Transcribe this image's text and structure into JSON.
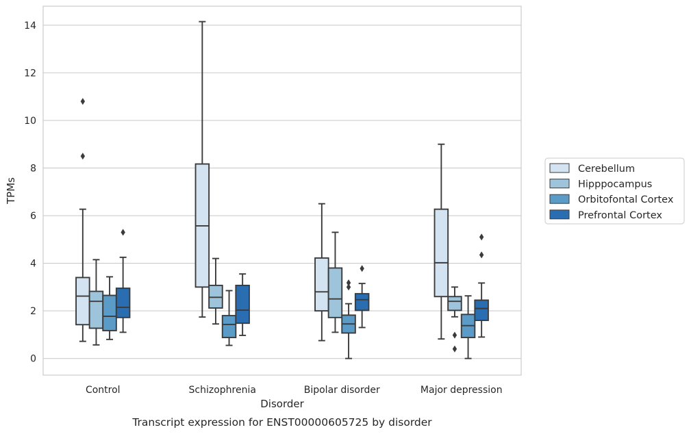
{
  "chart_data": {
    "type": "box",
    "title": "",
    "caption": "Transcript expression for ENST00000605725 by disorder",
    "xlabel": "Disorder",
    "ylabel": "TPMs",
    "ylim": [
      -0.7,
      14.8
    ],
    "yticks": [
      0,
      2,
      4,
      6,
      8,
      10,
      12,
      14
    ],
    "grid": "horizontal",
    "legend_position": "right",
    "categories": [
      "Control",
      "Schizophrenia",
      "Bipolar disorder",
      "Major depression"
    ],
    "series": [
      {
        "name": "Cerebellum",
        "color": "#d4e3f2",
        "boxes": [
          {
            "whisker_low": 0.72,
            "q1": 1.42,
            "median": 2.62,
            "q3": 3.4,
            "whisker_high": 6.27,
            "outliers": [
              8.5,
              10.8
            ]
          },
          {
            "whisker_low": 1.74,
            "q1": 3.0,
            "median": 5.57,
            "q3": 8.17,
            "whisker_high": 14.15,
            "outliers": []
          },
          {
            "whisker_low": 0.75,
            "q1": 2.0,
            "median": 2.8,
            "q3": 4.22,
            "whisker_high": 6.5,
            "outliers": []
          },
          {
            "whisker_low": 0.82,
            "q1": 2.6,
            "median": 4.02,
            "q3": 6.27,
            "whisker_high": 9.0,
            "outliers": []
          }
        ]
      },
      {
        "name": "Hipppocampus",
        "color": "#9ec4dc",
        "boxes": [
          {
            "whisker_low": 0.57,
            "q1": 1.27,
            "median": 2.4,
            "q3": 2.82,
            "whisker_high": 4.15,
            "outliers": []
          },
          {
            "whisker_low": 1.45,
            "q1": 2.12,
            "median": 2.57,
            "q3": 3.07,
            "whisker_high": 4.2,
            "outliers": []
          },
          {
            "whisker_low": 1.1,
            "q1": 1.72,
            "median": 2.5,
            "q3": 3.8,
            "whisker_high": 5.3,
            "outliers": []
          },
          {
            "whisker_low": 1.75,
            "q1": 2.02,
            "median": 2.4,
            "q3": 2.6,
            "whisker_high": 3.0,
            "outliers": [
              0.4,
              0.98
            ]
          }
        ]
      },
      {
        "name": "Orbitofontal Cortex",
        "color": "#5a9bc8",
        "boxes": [
          {
            "whisker_low": 0.8,
            "q1": 1.17,
            "median": 1.77,
            "q3": 2.65,
            "whisker_high": 3.43,
            "outliers": []
          },
          {
            "whisker_low": 0.55,
            "q1": 0.88,
            "median": 1.43,
            "q3": 1.8,
            "whisker_high": 2.85,
            "outliers": []
          },
          {
            "whisker_low": 0.0,
            "q1": 1.07,
            "median": 1.45,
            "q3": 1.82,
            "whisker_high": 2.3,
            "outliers": [
              3.0,
              3.18
            ]
          },
          {
            "whisker_low": 0.0,
            "q1": 0.88,
            "median": 1.38,
            "q3": 1.85,
            "whisker_high": 2.63,
            "outliers": []
          }
        ]
      },
      {
        "name": "Prefrontal Cortex",
        "color": "#2a6db0",
        "boxes": [
          {
            "whisker_low": 1.1,
            "q1": 1.72,
            "median": 2.15,
            "q3": 2.95,
            "whisker_high": 4.25,
            "outliers": [
              5.3
            ]
          },
          {
            "whisker_low": 0.97,
            "q1": 1.48,
            "median": 2.03,
            "q3": 3.07,
            "whisker_high": 3.55,
            "outliers": []
          },
          {
            "whisker_low": 1.3,
            "q1": 2.02,
            "median": 2.47,
            "q3": 2.72,
            "whisker_high": 3.15,
            "outliers": [
              3.78
            ]
          },
          {
            "whisker_low": 0.9,
            "q1": 1.6,
            "median": 2.1,
            "q3": 2.45,
            "whisker_high": 3.17,
            "outliers": [
              4.35,
              5.1
            ]
          }
        ]
      }
    ]
  }
}
